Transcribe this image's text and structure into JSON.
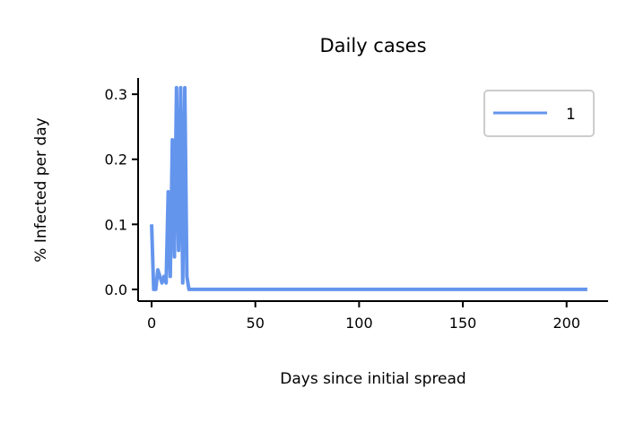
{
  "chart_data": {
    "type": "line",
    "title": "Daily cases",
    "xlabel": "Days since initial spread",
    "ylabel": "% Infected per day",
    "xlim": [
      -6.5,
      220
    ],
    "ylim": [
      -0.018,
      0.325
    ],
    "xticks": [
      0,
      50,
      100,
      150,
      200
    ],
    "yticks": [
      0.0,
      0.1,
      0.2,
      0.3
    ],
    "xtick_labels": [
      "0",
      "50",
      "100",
      "150",
      "200"
    ],
    "ytick_labels": [
      "0.0",
      "0.1",
      "0.2",
      "0.3"
    ],
    "grid": false,
    "legend_position": "top-right",
    "series": [
      {
        "name": "1",
        "color": "#6495ED",
        "x": [
          0,
          1,
          2,
          3,
          4,
          5,
          6,
          7,
          8,
          9,
          10,
          11,
          12,
          13,
          14,
          15,
          16,
          17,
          18,
          19,
          20,
          210
        ],
        "y": [
          0.1,
          0.0,
          0.0,
          0.03,
          0.02,
          0.01,
          0.02,
          0.01,
          0.15,
          0.02,
          0.23,
          0.05,
          0.31,
          0.06,
          0.31,
          0.01,
          0.31,
          0.02,
          0.0,
          0.0,
          0.0,
          0.0
        ]
      }
    ]
  }
}
